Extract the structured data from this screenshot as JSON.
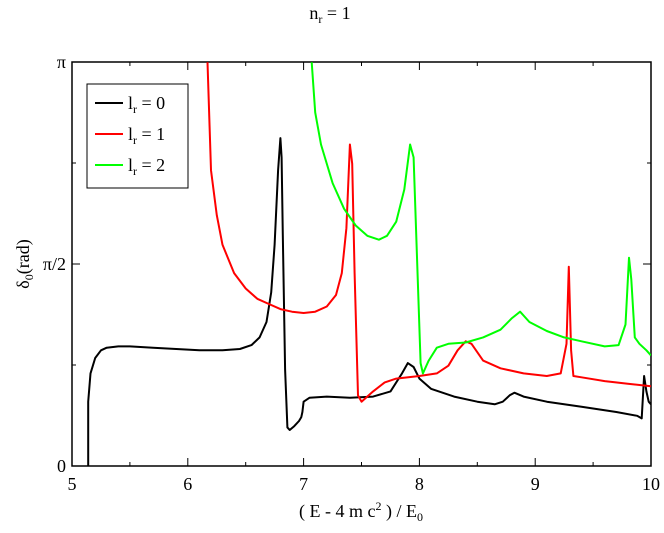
{
  "chart_data": {
    "type": "line",
    "title": "n_r = 1",
    "title_main": "n",
    "title_sub": "r",
    "title_rest": " = 1",
    "xlabel": "( E - 4 m c² ) / E₀",
    "ylabel": "δ₀(rad)",
    "xlim": [
      5,
      10
    ],
    "ylim": [
      0,
      3.14159
    ],
    "x_ticks": [
      5,
      6,
      7,
      8,
      9,
      10
    ],
    "y_ticks": [
      {
        "value": 0,
        "label": "0"
      },
      {
        "value": 1.5708,
        "label": "π/2"
      },
      {
        "value": 3.14159,
        "label": "π"
      }
    ],
    "grid": false,
    "legend_position": "top-left",
    "series": [
      {
        "name": "l_r = 0",
        "legend_main": "l",
        "legend_sub": "r",
        "legend_rest": " = 0",
        "color": "#000000",
        "points": [
          [
            5.14,
            0
          ],
          [
            5.14,
            0.5
          ],
          [
            5.16,
            0.72
          ],
          [
            5.2,
            0.84
          ],
          [
            5.25,
            0.9
          ],
          [
            5.3,
            0.92
          ],
          [
            5.4,
            0.93
          ],
          [
            5.5,
            0.93
          ],
          [
            5.7,
            0.92
          ],
          [
            5.9,
            0.91
          ],
          [
            6.1,
            0.9
          ],
          [
            6.3,
            0.9
          ],
          [
            6.45,
            0.91
          ],
          [
            6.55,
            0.94
          ],
          [
            6.62,
            1.0
          ],
          [
            6.68,
            1.12
          ],
          [
            6.72,
            1.35
          ],
          [
            6.75,
            1.72
          ],
          [
            6.78,
            2.3
          ],
          [
            6.8,
            2.55
          ],
          [
            6.81,
            2.4
          ],
          [
            6.82,
            1.8
          ],
          [
            6.84,
            0.75
          ],
          [
            6.86,
            0.3
          ],
          [
            6.88,
            0.28
          ],
          [
            6.92,
            0.31
          ],
          [
            6.96,
            0.35
          ],
          [
            6.98,
            0.38
          ],
          [
            6.99,
            0.42
          ],
          [
            7.0,
            0.5
          ],
          [
            7.05,
            0.53
          ],
          [
            7.2,
            0.54
          ],
          [
            7.4,
            0.53
          ],
          [
            7.6,
            0.54
          ],
          [
            7.75,
            0.58
          ],
          [
            7.85,
            0.72
          ],
          [
            7.9,
            0.8
          ],
          [
            7.95,
            0.77
          ],
          [
            8.0,
            0.68
          ],
          [
            8.1,
            0.6
          ],
          [
            8.3,
            0.54
          ],
          [
            8.5,
            0.5
          ],
          [
            8.65,
            0.48
          ],
          [
            8.72,
            0.5
          ],
          [
            8.78,
            0.55
          ],
          [
            8.82,
            0.57
          ],
          [
            8.9,
            0.54
          ],
          [
            9.1,
            0.5
          ],
          [
            9.4,
            0.46
          ],
          [
            9.7,
            0.42
          ],
          [
            9.88,
            0.39
          ],
          [
            9.92,
            0.37
          ],
          [
            9.94,
            0.7
          ],
          [
            9.96,
            0.58
          ],
          [
            9.98,
            0.5
          ],
          [
            10.0,
            0.48
          ]
        ]
      },
      {
        "name": "l_r = 1",
        "legend_main": "l",
        "legend_sub": "r",
        "legend_rest": " = 1",
        "color": "#ff0000",
        "points": [
          [
            6.17,
            3.14
          ],
          [
            6.2,
            2.3
          ],
          [
            6.25,
            1.95
          ],
          [
            6.3,
            1.72
          ],
          [
            6.4,
            1.5
          ],
          [
            6.5,
            1.38
          ],
          [
            6.6,
            1.3
          ],
          [
            6.7,
            1.26
          ],
          [
            6.8,
            1.22
          ],
          [
            6.9,
            1.2
          ],
          [
            7.0,
            1.19
          ],
          [
            7.1,
            1.2
          ],
          [
            7.2,
            1.24
          ],
          [
            7.28,
            1.33
          ],
          [
            7.33,
            1.5
          ],
          [
            7.37,
            1.85
          ],
          [
            7.4,
            2.5
          ],
          [
            7.42,
            2.35
          ],
          [
            7.44,
            1.5
          ],
          [
            7.47,
            0.55
          ],
          [
            7.5,
            0.5
          ],
          [
            7.6,
            0.58
          ],
          [
            7.7,
            0.65
          ],
          [
            7.8,
            0.68
          ],
          [
            8.0,
            0.7
          ],
          [
            8.15,
            0.72
          ],
          [
            8.25,
            0.78
          ],
          [
            8.33,
            0.9
          ],
          [
            8.4,
            0.97
          ],
          [
            8.45,
            0.95
          ],
          [
            8.55,
            0.82
          ],
          [
            8.7,
            0.76
          ],
          [
            8.9,
            0.72
          ],
          [
            9.1,
            0.7
          ],
          [
            9.22,
            0.72
          ],
          [
            9.27,
            0.95
          ],
          [
            9.29,
            1.55
          ],
          [
            9.31,
            0.9
          ],
          [
            9.33,
            0.7
          ],
          [
            9.4,
            0.69
          ],
          [
            9.6,
            0.66
          ],
          [
            9.8,
            0.64
          ],
          [
            10.0,
            0.62
          ]
        ]
      },
      {
        "name": "l_r = 2",
        "legend_main": "l",
        "legend_sub": "r",
        "legend_rest": " = 2",
        "color": "#00ff00",
        "points": [
          [
            7.07,
            3.14
          ],
          [
            7.1,
            2.75
          ],
          [
            7.15,
            2.5
          ],
          [
            7.25,
            2.2
          ],
          [
            7.35,
            2.0
          ],
          [
            7.45,
            1.87
          ],
          [
            7.55,
            1.79
          ],
          [
            7.65,
            1.76
          ],
          [
            7.72,
            1.79
          ],
          [
            7.8,
            1.9
          ],
          [
            7.87,
            2.15
          ],
          [
            7.92,
            2.5
          ],
          [
            7.95,
            2.4
          ],
          [
            7.98,
            1.6
          ],
          [
            8.01,
            0.8
          ],
          [
            8.03,
            0.72
          ],
          [
            8.08,
            0.82
          ],
          [
            8.15,
            0.92
          ],
          [
            8.25,
            0.95
          ],
          [
            8.4,
            0.96
          ],
          [
            8.55,
            1.0
          ],
          [
            8.7,
            1.06
          ],
          [
            8.8,
            1.15
          ],
          [
            8.87,
            1.2
          ],
          [
            8.95,
            1.12
          ],
          [
            9.1,
            1.05
          ],
          [
            9.25,
            1.0
          ],
          [
            9.4,
            0.97
          ],
          [
            9.6,
            0.93
          ],
          [
            9.72,
            0.94
          ],
          [
            9.78,
            1.1
          ],
          [
            9.81,
            1.62
          ],
          [
            9.83,
            1.45
          ],
          [
            9.86,
            1.0
          ],
          [
            9.9,
            0.95
          ],
          [
            9.96,
            0.9
          ],
          [
            10.0,
            0.86
          ]
        ]
      }
    ]
  }
}
